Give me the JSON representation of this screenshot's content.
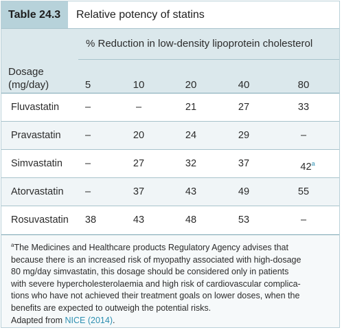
{
  "table": {
    "number": "Table 24.3",
    "title": "Relative potency of statins",
    "span_header": "% Reduction in low-density lipoprotein cholesterol",
    "row_header_line1": "Dosage",
    "row_header_line2": "(mg/day)",
    "doses": [
      "5",
      "10",
      "20",
      "40",
      "80"
    ],
    "rows": [
      {
        "drug": "Fluvastatin",
        "values": [
          "–",
          "–",
          "21",
          "27",
          "33"
        ],
        "flag": ""
      },
      {
        "drug": "Pravastatin",
        "values": [
          "–",
          "20",
          "24",
          "29",
          "–"
        ],
        "flag": ""
      },
      {
        "drug": "Simvastatin",
        "values": [
          "–",
          "27",
          "32",
          "37",
          "42"
        ],
        "flag": "a"
      },
      {
        "drug": "Atorvastatin",
        "values": [
          "–",
          "37",
          "43",
          "49",
          "55"
        ],
        "flag": ""
      },
      {
        "drug": "Rosuvastatin",
        "values": [
          "38",
          "43",
          "48",
          "53",
          "–"
        ],
        "flag": ""
      }
    ]
  },
  "footnote": {
    "marker": "a",
    "lines": [
      "The Medicines and Healthcare products Regulatory Agency advises that",
      "because there is an increased risk of myopathy associated with high-dosage",
      "80 mg/day simvastatin, this dosage should be considered only in patients",
      "with severe hypercholesterolaemia and high risk of cardiovascular complica-",
      "tions who have not achieved their treatment goals on lower doses, when the",
      "benefits are expected to outweigh the potential risks."
    ],
    "source_prefix": "Adapted from ",
    "source_link": "NICE (2014)",
    "source_suffix": "."
  },
  "colors": {
    "header_fill": "#dbe8ec",
    "title_tab": "#b7d2da",
    "rule": "#a8c3cc",
    "link": "#2c8fb1"
  }
}
